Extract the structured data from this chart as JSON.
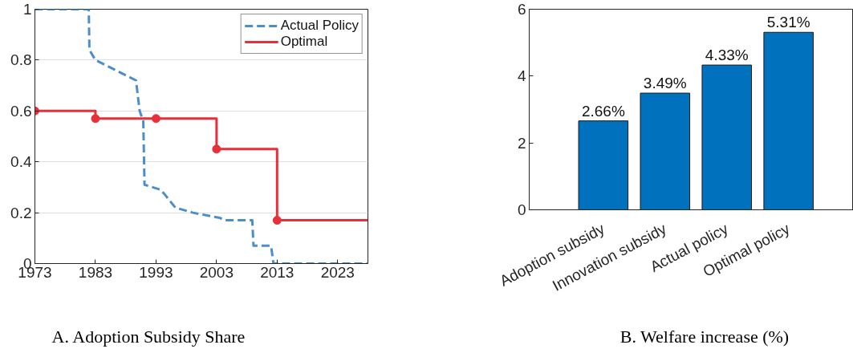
{
  "chart_data": [
    {
      "type": "line",
      "title": "A. Adoption Subsidy Share",
      "xlim": [
        1973,
        2028
      ],
      "xticks": [
        1973,
        1983,
        1993,
        2003,
        2013,
        2023
      ],
      "ylim": [
        0,
        1
      ],
      "yticks": [
        0,
        0.2,
        0.4,
        0.6,
        0.8,
        1
      ],
      "grid": "y",
      "legend": "top right",
      "series": [
        {
          "name": "Actual Policy",
          "type": "line",
          "line_style": "dashed",
          "color": "#4a8fcc",
          "x": [
            1973,
            1981.9,
            1982.0,
            1983.0,
            1989.7,
            1990.3,
            1990.9,
            1991.1,
            1993.8,
            1994.5,
            1996.2,
            1999.1,
            2003.5,
            2004.4,
            2008.9,
            2009.1,
            2012.0,
            2012.4,
            2028
          ],
          "values": [
            1,
            1,
            0.84,
            0.8,
            0.72,
            0.6,
            0.56,
            0.31,
            0.29,
            0.27,
            0.22,
            0.2,
            0.18,
            0.17,
            0.17,
            0.07,
            0.07,
            0,
            0
          ]
        },
        {
          "name": "Optimal",
          "type": "step",
          "color": "#e8303a",
          "x": [
            1973,
            1983,
            2003,
            2013,
            2028
          ],
          "values": [
            0.6,
            0.57,
            0.45,
            0.17,
            0.17
          ]
        },
        {
          "type": "scatter",
          "marker": "circle",
          "color": "#e8303a",
          "x": [
            1973,
            1983,
            1993,
            2003,
            2013
          ],
          "values": [
            0.6,
            0.57,
            0.57,
            0.45,
            0.17
          ]
        }
      ]
    },
    {
      "type": "bar",
      "title": "B. Welfare increase (%)",
      "categories": [
        "Adoption subsidy",
        "Innovation subsidy",
        "Actual policy",
        "Optimal policy"
      ],
      "values": [
        2.66,
        3.49,
        4.33,
        5.31
      ],
      "value_labels": [
        "2.66%",
        "3.49%",
        "4.33%",
        "5.31%"
      ],
      "color": "#0072bd",
      "ylim": [
        0,
        6
      ],
      "yticks": [
        0,
        2,
        4,
        6
      ]
    }
  ]
}
